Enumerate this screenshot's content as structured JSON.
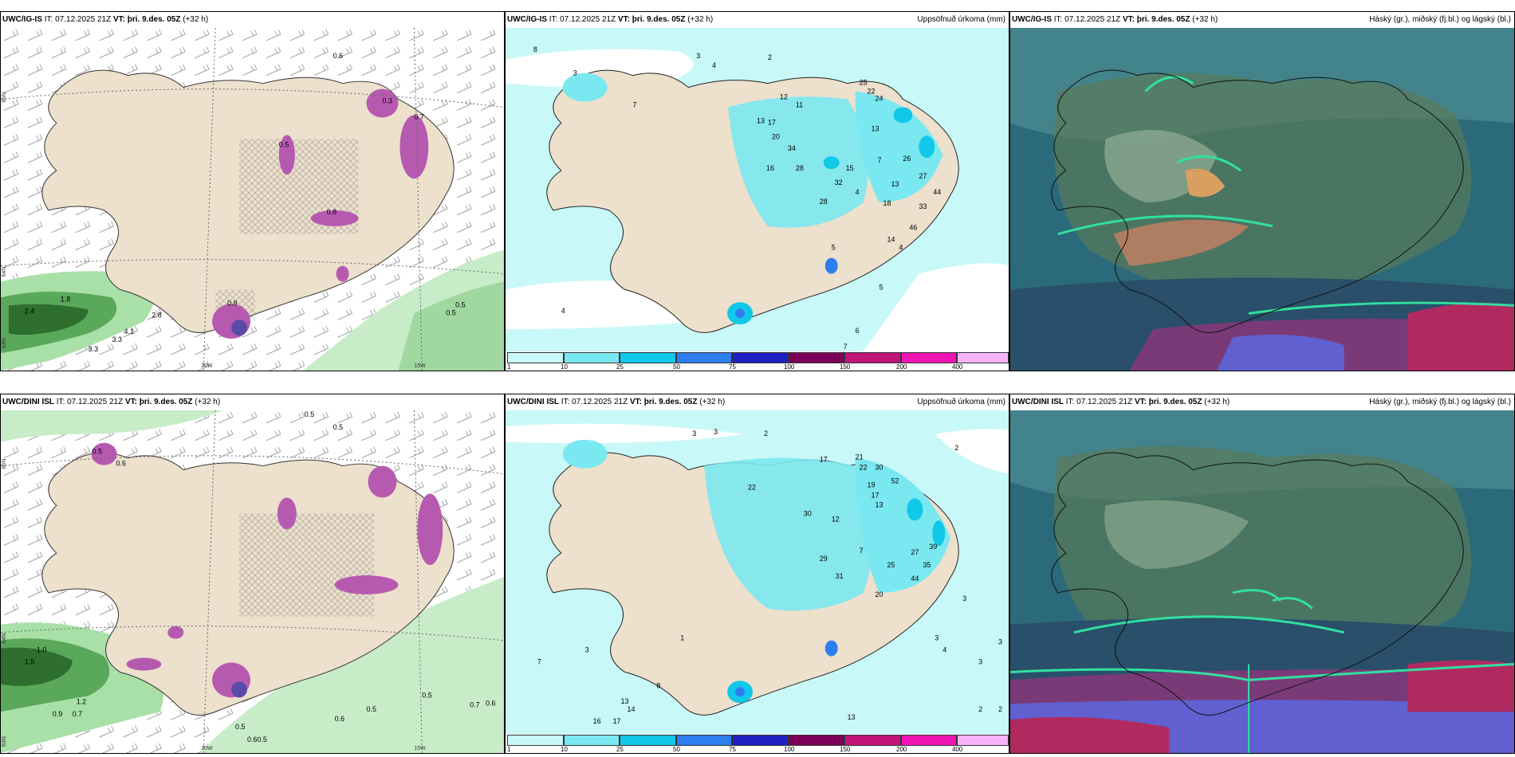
{
  "rows": [
    {
      "model": "UWC/IG-IS",
      "it_label": "IT:",
      "issue_time": "07.12.2025 21Z",
      "vt_label": "VT:",
      "valid_time": "þri. 9.des. 05Z",
      "lead": "(+32 h)"
    },
    {
      "model": "UWC/DINI ISL",
      "it_label": "IT:",
      "issue_time": "07.12.2025 21Z",
      "vt_label": "VT:",
      "valid_time": "þri. 9.des. 05Z",
      "lead": "(+32 h)"
    }
  ],
  "panel_titles": {
    "precip": "Uppsöfnuð úrkoma (mm)",
    "cloud": "Háský (gr.), miðský (fj.bl.) og lágský (bl.)"
  },
  "precip_legend": {
    "ticks": [
      "1",
      "10",
      "25",
      "50",
      "75",
      "100",
      "150",
      "200",
      "400"
    ],
    "colors": [
      "#c8f8f8",
      "#7ae8f0",
      "#10c8e8",
      "#2e7ef0",
      "#2020c0",
      "#7a0058",
      "#c0147a",
      "#f014b4",
      "#f8b4f8"
    ]
  },
  "axis_labels": {
    "lon_20w": "20W",
    "lon_15w": "15W",
    "lat_66n": "66N",
    "lat_64n": "64N",
    "lat_63n": "63N"
  },
  "top_left_values": [
    "0.6",
    "0.3",
    "0.7",
    "0.5",
    "0.8",
    "0.9",
    "1.8",
    "2.8",
    "4.1",
    "3.3",
    "3.3",
    "2.4",
    "0.5",
    "0.5"
  ],
  "bottom_left_values": [
    "0.5",
    "0.5",
    "0.5",
    "0.6",
    "1.0",
    "1.5",
    "1.2",
    "0.9",
    "0.7",
    "0.6",
    "0.5",
    "0.5",
    "0.6",
    "0.7",
    "0.5",
    "0.60.5"
  ],
  "top_mid_values": [
    "8",
    "3",
    "4",
    "2",
    "3",
    "7",
    "12",
    "11",
    "13",
    "17",
    "20",
    "34",
    "28",
    "16",
    "25",
    "22",
    "24",
    "13",
    "7",
    "32",
    "28",
    "13",
    "26",
    "33",
    "44",
    "46",
    "18",
    "15",
    "4",
    "4",
    "5",
    "6",
    "7",
    "14",
    "27",
    "5",
    "4"
  ],
  "bottom_mid_values": [
    "3",
    "3",
    "2",
    "2",
    "22",
    "17",
    "21",
    "22",
    "30",
    "52",
    "19",
    "17",
    "13",
    "12",
    "30",
    "29",
    "31",
    "25",
    "27",
    "44",
    "39",
    "35",
    "20",
    "7",
    "3",
    "3",
    "8",
    "13",
    "14",
    "16",
    "17",
    "13",
    "1",
    "7",
    "3",
    "2",
    "2",
    "3",
    "3",
    "4"
  ]
}
